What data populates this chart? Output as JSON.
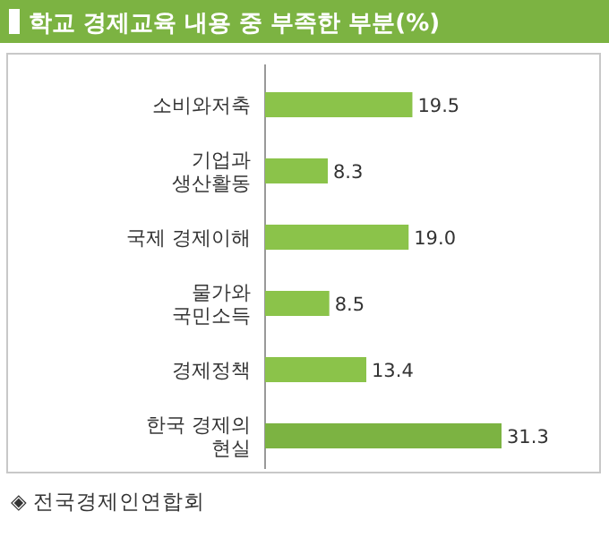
{
  "chart_data": {
    "type": "bar",
    "orientation": "horizontal",
    "title": "학교 경제교육 내용 중 부족한 부분(%)",
    "categories": [
      "소비와저축",
      "기업과\n생산활동",
      "국제 경제이해",
      "물가와\n국민소득",
      "경제정책",
      "한국 경제의\n현실"
    ],
    "values": [
      19.5,
      8.3,
      19.0,
      8.5,
      13.4,
      31.3
    ],
    "value_labels": [
      "19.5",
      "8.3",
      "19.0",
      "8.5",
      "13.4",
      "31.3"
    ],
    "colors": [
      "#8bc34a",
      "#8bc34a",
      "#8bc34a",
      "#8bc34a",
      "#8bc34a",
      "#7cb342"
    ],
    "annotations": [
      "◈ 전국경제인연합회"
    ]
  }
}
